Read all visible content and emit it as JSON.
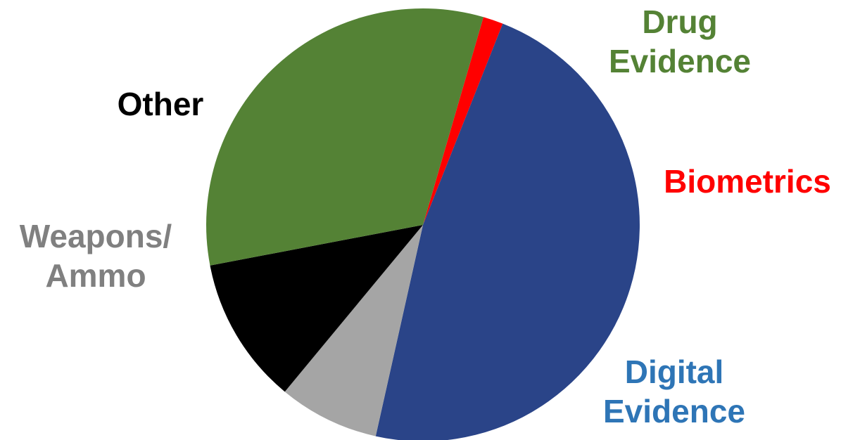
{
  "chart_data": {
    "type": "pie",
    "title": "",
    "start_angle_deg": 73.8,
    "direction": "clockwise",
    "slices": [
      {
        "label_lines": [
          "Biometrics"
        ],
        "value": 1.5,
        "color": "#FF0000",
        "label_color": "#FF0000"
      },
      {
        "label_lines": [
          "Digital",
          "Evidence"
        ],
        "value": 47.5,
        "color": "#2A4488",
        "label_color": "#2E75B6"
      },
      {
        "label_lines": [
          "Weapons/",
          "Ammo"
        ],
        "value": 7.5,
        "color": "#A5A5A5",
        "label_color": "#808080"
      },
      {
        "label_lines": [
          "Other"
        ],
        "value": 11.0,
        "color": "#000000",
        "label_color": "#000000"
      },
      {
        "label_lines": [
          "Drug",
          "Evidence"
        ],
        "value": 32.5,
        "color": "#548235",
        "label_color": "#548235"
      }
    ]
  }
}
